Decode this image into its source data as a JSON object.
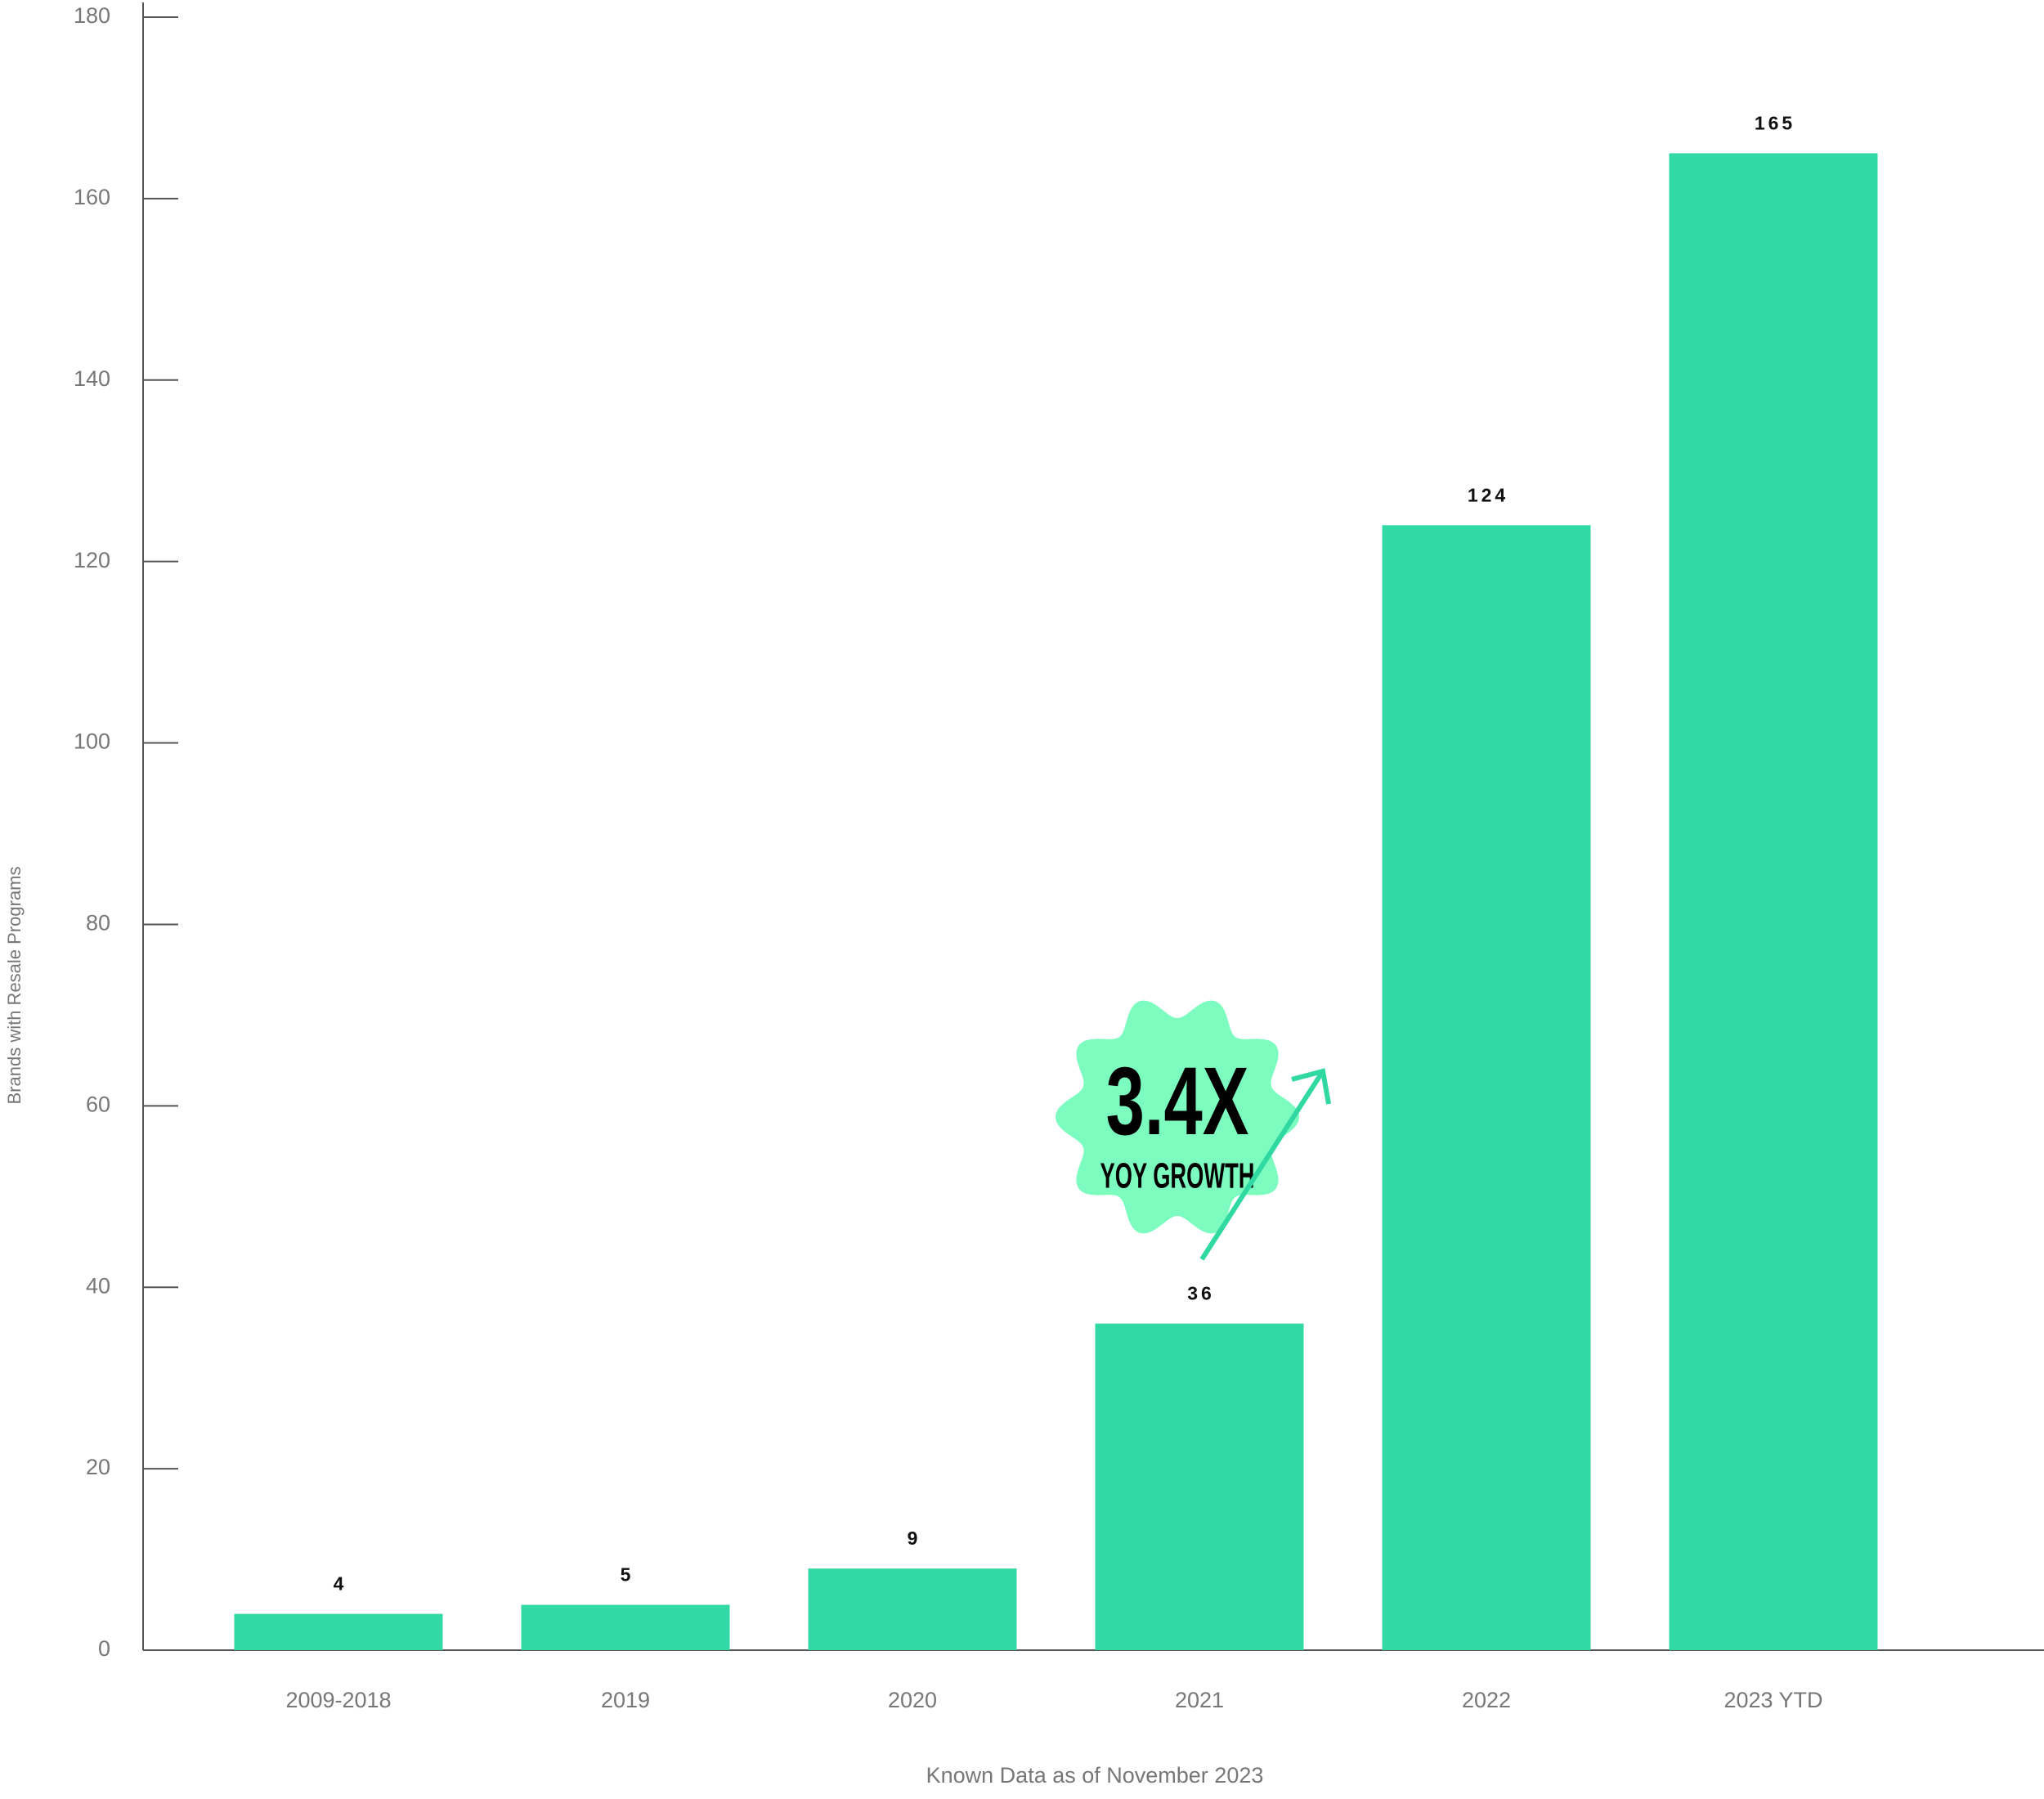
{
  "chart_data": {
    "type": "bar",
    "y_label": "Brands with Resale Programs",
    "x_label": "Known Data as of November 2023",
    "categories": [
      "2009-2018",
      "2019",
      "2020",
      "2021",
      "2022",
      "2023 YTD"
    ],
    "values": [
      4,
      5,
      9,
      36,
      124,
      165
    ],
    "color": "#32d9a4",
    "ylim": [
      0,
      180
    ],
    "yticks": [
      0,
      20,
      40,
      60,
      80,
      100,
      120,
      140,
      160,
      180
    ],
    "grid": false,
    "annotation": {
      "headline": "3.4X",
      "text": "YOY GROWTH",
      "color": "#7dfcc0"
    }
  }
}
